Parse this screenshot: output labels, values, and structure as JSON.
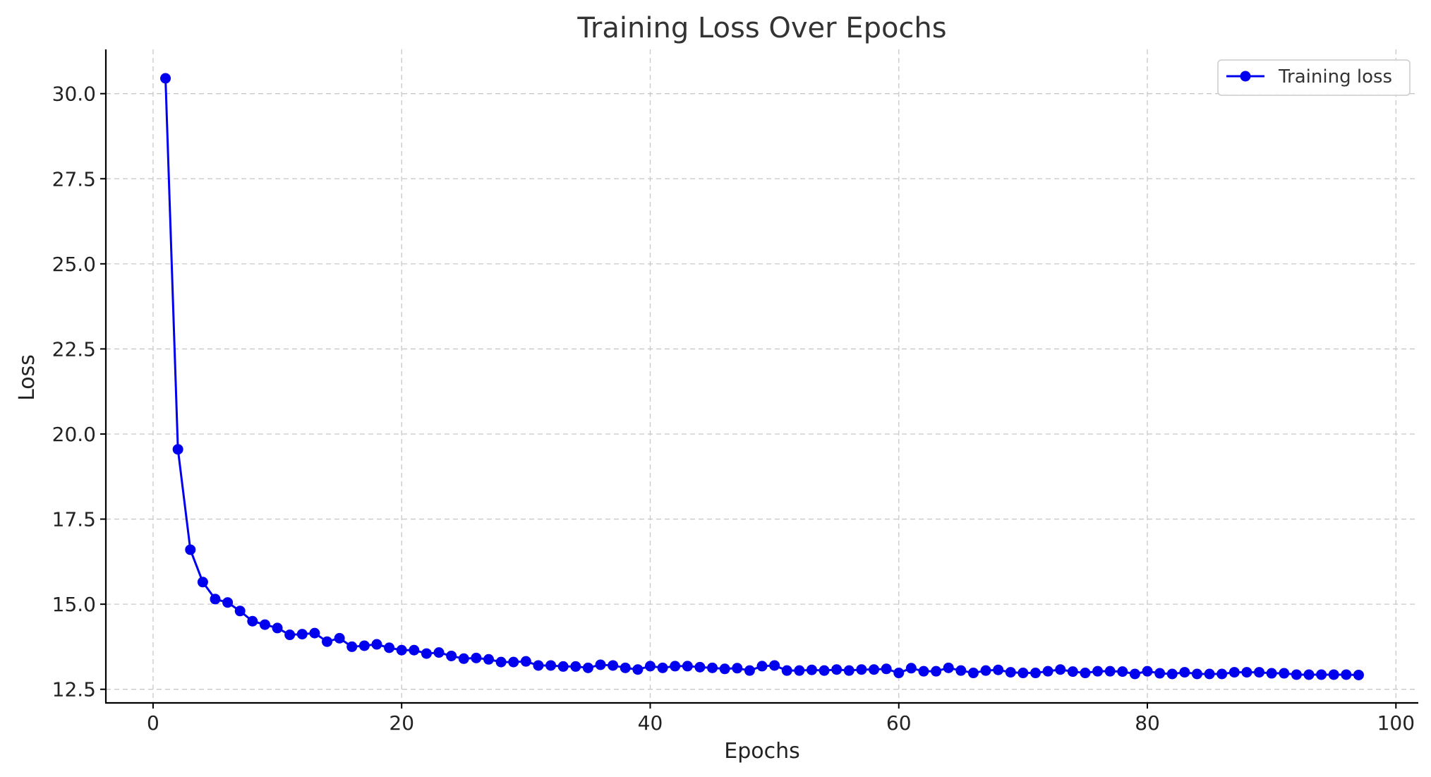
{
  "chart_data": {
    "type": "line",
    "title": "Training Loss Over Epochs",
    "xlabel": "Epochs",
    "ylabel": "Loss",
    "xlim": [
      -3.8,
      101.8
    ],
    "ylim": [
      12.1,
      31.3
    ],
    "xticks": [
      0,
      20,
      40,
      60,
      80,
      100
    ],
    "yticks": [
      12.5,
      15.0,
      17.5,
      20.0,
      22.5,
      25.0,
      27.5,
      30.0
    ],
    "xtick_labels": [
      "0",
      "20",
      "40",
      "60",
      "80",
      "100"
    ],
    "ytick_labels": [
      "12.5",
      "15.0",
      "17.5",
      "20.0",
      "22.5",
      "25.0",
      "27.5",
      "30.0"
    ],
    "grid": true,
    "legend_position": "top-right",
    "series": [
      {
        "name": "Training loss",
        "color": "#0000ee",
        "marker": "circle",
        "x": [
          1,
          2,
          3,
          4,
          5,
          6,
          7,
          8,
          9,
          10,
          11,
          12,
          13,
          14,
          15,
          16,
          17,
          18,
          19,
          20,
          21,
          22,
          23,
          24,
          25,
          26,
          27,
          28,
          29,
          30,
          31,
          32,
          33,
          34,
          35,
          36,
          37,
          38,
          39,
          40,
          41,
          42,
          43,
          44,
          45,
          46,
          47,
          48,
          49,
          50,
          51,
          52,
          53,
          54,
          55,
          56,
          57,
          58,
          59,
          60,
          61,
          62,
          63,
          64,
          65,
          66,
          67,
          68,
          69,
          70,
          71,
          72,
          73,
          74,
          75,
          76,
          77,
          78,
          79,
          80,
          81,
          82,
          83,
          84,
          85,
          86,
          87,
          88,
          89,
          90,
          91,
          92,
          93,
          94,
          95,
          96,
          97
        ],
        "y": [
          30.45,
          19.55,
          16.6,
          15.65,
          15.15,
          15.05,
          14.8,
          14.5,
          14.4,
          14.3,
          14.1,
          14.12,
          14.15,
          13.9,
          14.0,
          13.75,
          13.78,
          13.82,
          13.72,
          13.65,
          13.65,
          13.55,
          13.58,
          13.48,
          13.4,
          13.42,
          13.38,
          13.3,
          13.3,
          13.32,
          13.2,
          13.2,
          13.17,
          13.17,
          13.13,
          13.22,
          13.2,
          13.13,
          13.08,
          13.18,
          13.13,
          13.18,
          13.18,
          13.15,
          13.13,
          13.1,
          13.12,
          13.05,
          13.18,
          13.2,
          13.05,
          13.05,
          13.07,
          13.05,
          13.08,
          13.05,
          13.08,
          13.08,
          13.1,
          12.98,
          13.12,
          13.03,
          13.03,
          13.13,
          13.05,
          12.98,
          13.05,
          13.07,
          13.0,
          12.98,
          12.98,
          13.03,
          13.08,
          13.02,
          12.98,
          13.03,
          13.03,
          13.02,
          12.95,
          13.03,
          12.97,
          12.95,
          13.0,
          12.95,
          12.95,
          12.95,
          13.0,
          13.0,
          13.0,
          12.97,
          12.97,
          12.93,
          12.93,
          12.93,
          12.93,
          12.93,
          12.92
        ]
      }
    ]
  }
}
